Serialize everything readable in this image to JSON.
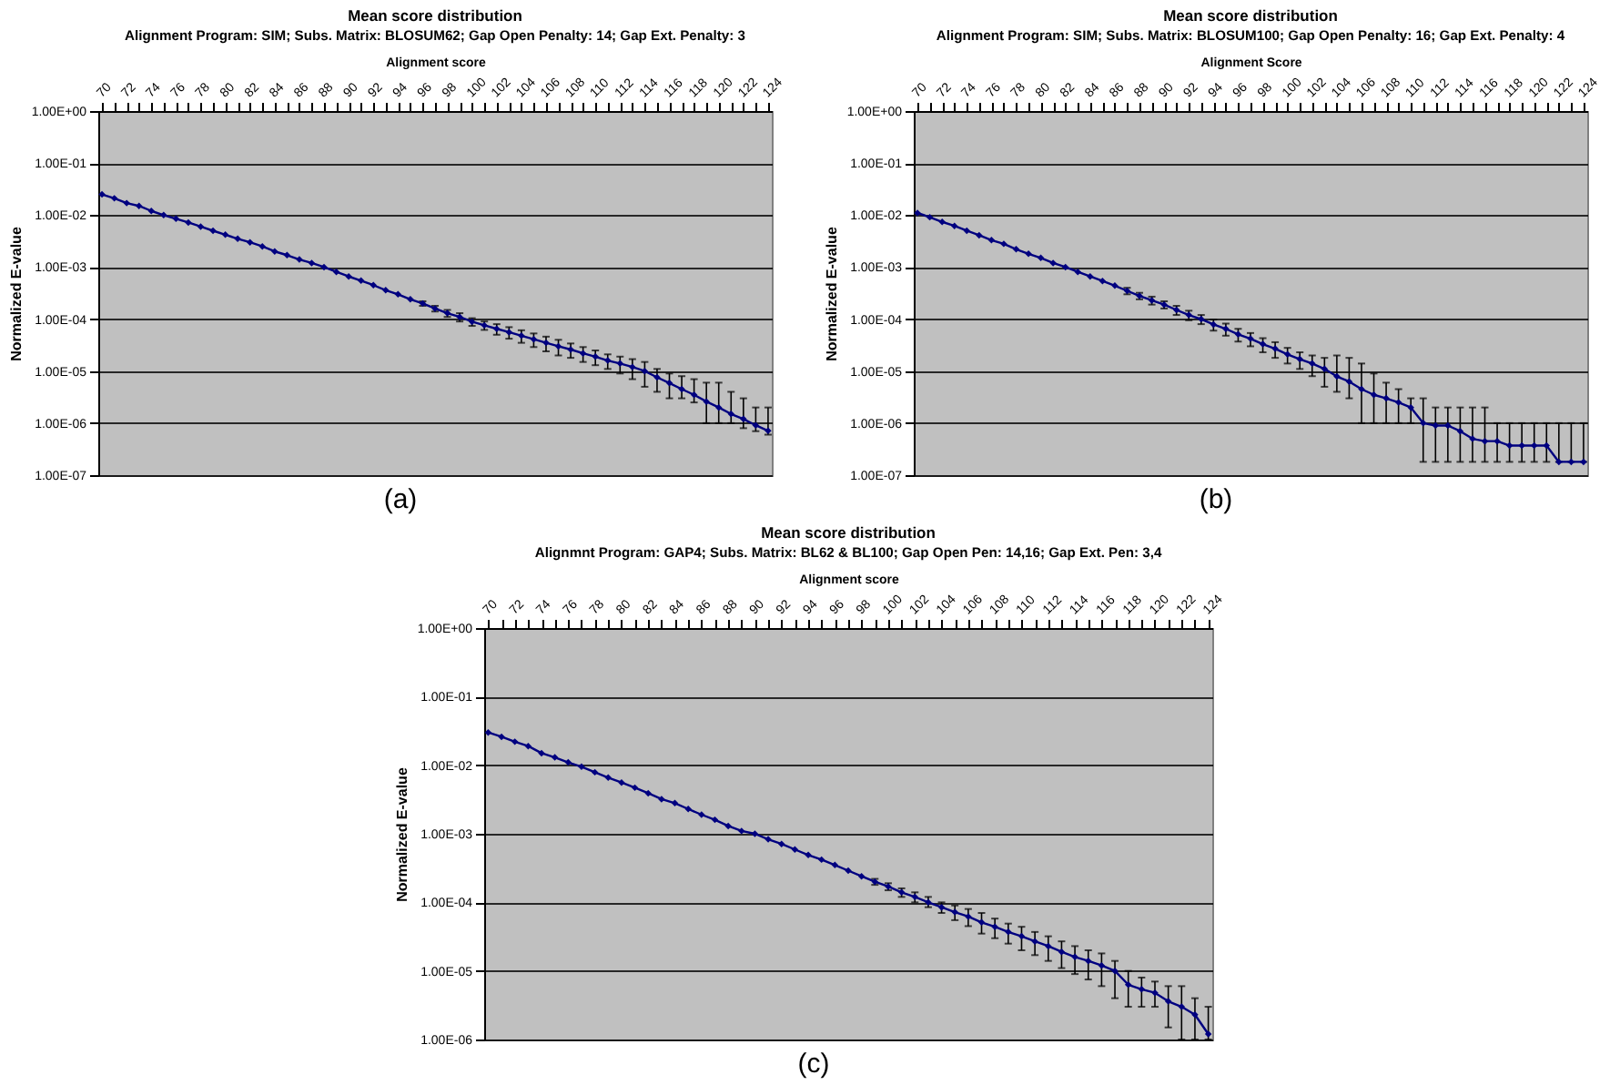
{
  "chart_data": [
    {
      "type": "line",
      "title": "Mean score distribution",
      "subtitle": "Alignment Program: SIM; Subs. Matrix: BLOSUM62; Gap Open Penalty: 14; Gap Ext. Penalty:  3",
      "xlabel": "Alignment score",
      "ylabel": "Normalized E-value",
      "annotations": [
        "(a)"
      ],
      "categories": [
        "70",
        null,
        "72",
        null,
        "74",
        null,
        "76",
        null,
        "78",
        null,
        "80",
        null,
        "82",
        null,
        "84",
        null,
        "86",
        null,
        "88",
        null,
        "90",
        null,
        "92",
        null,
        "94",
        null,
        "96",
        null,
        "98",
        null,
        "100",
        null,
        "102",
        null,
        "104",
        null,
        "106",
        null,
        "108",
        null,
        "110",
        null,
        "112",
        null,
        "114",
        null,
        "116",
        null,
        "118",
        null,
        "120",
        null,
        "122",
        null,
        "124"
      ],
      "series": [
        {
          "color": "#000080",
          "values": [
            0.025,
            0.021,
            0.017,
            0.015,
            0.012,
            0.01,
            0.0085,
            0.0072,
            0.006,
            0.005,
            0.0042,
            0.0035,
            0.003,
            0.0025,
            0.002,
            0.0017,
            0.0014,
            0.0012,
            0.001,
            0.00081,
            0.00066,
            0.00055,
            0.00045,
            0.00036,
            0.0003,
            0.00024,
            0.0002,
            0.00016,
            0.00013,
            0.00011,
            8.9e-05,
            7.6e-05,
            6.5e-05,
            5.6e-05,
            4.8e-05,
            4.1e-05,
            3.5e-05,
            3e-05,
            2.6e-05,
            2.2e-05,
            1.9e-05,
            1.6e-05,
            1.4e-05,
            1.2e-05,
            1e-05,
            7.6e-06,
            5.9e-06,
            4.5e-06,
            3.5e-06,
            2.6e-06,
            2e-06,
            1.5e-06,
            1.2e-06,
            9.1e-07,
            7.1e-07
          ],
          "errors": [
            null,
            null,
            null,
            null,
            null,
            null,
            null,
            null,
            null,
            null,
            null,
            null,
            null,
            null,
            null,
            null,
            null,
            null,
            null,
            null,
            null,
            null,
            null,
            null,
            null,
            null,
            [
              0.00018,
              0.00022
            ],
            [
              0.00014,
              0.00018
            ],
            [
              0.00011,
              0.00015
            ],
            [
              9e-05,
              0.00013
            ],
            [
              7.4e-05,
              0.000104
            ],
            [
              6.2e-05,
              9e-05
            ],
            [
              5e-05,
              8e-05
            ],
            [
              4.2e-05,
              7e-05
            ],
            [
              3.5e-05,
              6.1e-05
            ],
            [
              2.9e-05,
              5.3e-05
            ],
            [
              2.4e-05,
              4.6e-05
            ],
            [
              2e-05,
              4e-05
            ],
            [
              1.8e-05,
              3.4e-05
            ],
            [
              1.5e-05,
              2.9e-05
            ],
            [
              1.3e-05,
              2.5e-05
            ],
            [
              1.1e-05,
              2.1e-05
            ],
            [
              9e-06,
              1.9e-05
            ],
            [
              7e-06,
              1.7e-05
            ],
            [
              5e-06,
              1.5e-05
            ],
            [
              4e-06,
              1.1e-05
            ],
            [
              3e-06,
              9e-06
            ],
            [
              3e-06,
              8e-06
            ],
            [
              2.5e-06,
              7e-06
            ],
            [
              1e-06,
              6e-06
            ],
            [
              1e-06,
              6e-06
            ],
            [
              1e-06,
              4e-06
            ],
            [
              8e-07,
              3e-06
            ],
            [
              7e-07,
              2e-06
            ],
            [
              6e-07,
              2e-06
            ]
          ]
        }
      ],
      "log": "y",
      "ylim": [
        1e-07,
        1
      ],
      "yticks": [
        {
          "value": 1,
          "label": "1.00E+00"
        },
        {
          "value": 0.1,
          "label": "1.00E-01"
        },
        {
          "value": 0.01,
          "label": "1.00E-02"
        },
        {
          "value": 0.001,
          "label": "1.00E-03"
        },
        {
          "value": 0.0001,
          "label": "1.00E-04"
        },
        {
          "value": 1e-05,
          "label": "1.00E-05"
        },
        {
          "value": 1e-06,
          "label": "1.00E-06"
        },
        {
          "value": 1e-07,
          "label": "1.00E-07"
        }
      ],
      "grid": "y",
      "marker": "diamond",
      "line_style": "solid"
    },
    {
      "type": "line",
      "title": "Mean score distribution",
      "subtitle": "Alignment Program: SIM; Subs. Matrix: BLOSUM100; Gap Open Penalty: 16; Gap Ext. Penalty: 4",
      "xlabel": "Alignment Score",
      "ylabel": "Normalized E-value",
      "annotations": [
        "(b)"
      ],
      "categories": [
        "70",
        null,
        "72",
        null,
        "74",
        null,
        "76",
        null,
        "78",
        null,
        "80",
        null,
        "82",
        null,
        "84",
        null,
        "86",
        null,
        "88",
        null,
        "90",
        null,
        "92",
        null,
        "94",
        null,
        "96",
        null,
        "98",
        null,
        "100",
        null,
        "102",
        null,
        "104",
        null,
        "106",
        null,
        "108",
        null,
        "110",
        null,
        "112",
        null,
        "114",
        null,
        "116",
        null,
        "118",
        null,
        "120",
        null,
        "122",
        null,
        "124"
      ],
      "series": [
        {
          "color": "#000080",
          "values": [
            0.011,
            0.0091,
            0.0074,
            0.0062,
            0.005,
            0.0041,
            0.0033,
            0.0028,
            0.0022,
            0.0018,
            0.0015,
            0.0012,
            0.001,
            0.00081,
            0.00066,
            0.00054,
            0.00044,
            0.00035,
            0.00028,
            0.00023,
            0.00019,
            0.00015,
            0.00012,
            0.0001,
            7.9e-05,
            6.5e-05,
            5.1e-05,
            4.2e-05,
            3.3e-05,
            2.7e-05,
            2.1e-05,
            1.7e-05,
            1.4e-05,
            1.1e-05,
            7.9e-06,
            6.3e-06,
            4.5e-06,
            3.5e-06,
            3e-06,
            2.5e-06,
            2e-06,
            1e-06,
            9e-07,
            9e-07,
            7e-07,
            5e-07,
            4.5e-07,
            4.5e-07,
            3.7e-07,
            3.7e-07,
            3.7e-07,
            3.7e-07,
            1.8e-07,
            1.8e-07,
            1.8e-07
          ],
          "errors": [
            null,
            null,
            null,
            null,
            null,
            null,
            null,
            null,
            null,
            null,
            null,
            null,
            null,
            null,
            null,
            null,
            null,
            [
              0.0003,
              0.0004
            ],
            [
              0.00024,
              0.00032
            ],
            [
              0.00019,
              0.00027
            ],
            [
              0.00016,
              0.00022
            ],
            [
              0.00012,
              0.00018
            ],
            [
              9.5e-05,
              0.000145
            ],
            [
              8e-05,
              0.00012
            ],
            [
              6e-05,
              9.8e-05
            ],
            [
              4.8e-05,
              8.2e-05
            ],
            [
              3.7e-05,
              6.5e-05
            ],
            [
              3e-05,
              5.4e-05
            ],
            [
              2.3e-05,
              4.3e-05
            ],
            [
              1.8e-05,
              3.6e-05
            ],
            [
              1.4e-05,
              2.8e-05
            ],
            [
              1.1e-05,
              2.3e-05
            ],
            [
              8e-06,
              2e-05
            ],
            [
              5e-06,
              1.8e-05
            ],
            [
              4e-06,
              2e-05
            ],
            [
              3e-06,
              1.8e-05
            ],
            [
              1e-06,
              1.4e-05
            ],
            [
              1e-06,
              9e-06
            ],
            [
              1e-06,
              6e-06
            ],
            [
              1e-06,
              4.5e-06
            ],
            [
              1e-06,
              3e-06
            ],
            [
              1.8e-07,
              3e-06
            ],
            [
              1.8e-07,
              2e-06
            ],
            [
              1.8e-07,
              2e-06
            ],
            [
              1.8e-07,
              2e-06
            ],
            [
              1.8e-07,
              2e-06
            ],
            [
              1.8e-07,
              2e-06
            ],
            [
              1.8e-07,
              1e-06
            ],
            [
              1.8e-07,
              1e-06
            ],
            [
              1.8e-07,
              1e-06
            ],
            [
              1.8e-07,
              1e-06
            ],
            [
              1.8e-07,
              1e-06
            ],
            [
              1.8e-07,
              1e-06
            ],
            [
              1.8e-07,
              1e-06
            ],
            [
              1.8e-07,
              1e-06
            ]
          ]
        }
      ],
      "log": "y",
      "ylim": [
        1e-07,
        1
      ],
      "yticks": [
        {
          "value": 1,
          "label": "1.00E+00"
        },
        {
          "value": 0.1,
          "label": "1.00E-01"
        },
        {
          "value": 0.01,
          "label": "1.00E-02"
        },
        {
          "value": 0.001,
          "label": "1.00E-03"
        },
        {
          "value": 0.0001,
          "label": "1.00E-04"
        },
        {
          "value": 1e-05,
          "label": "1.00E-05"
        },
        {
          "value": 1e-06,
          "label": "1.00E-06"
        },
        {
          "value": 1e-07,
          "label": "1.00E-07"
        }
      ],
      "grid": "y",
      "marker": "diamond",
      "line_style": "solid"
    },
    {
      "type": "line",
      "title": "Mean score distribution",
      "subtitle": "Alignmnt Program: GAP4; Subs. Matrix: BL62 & BL100; Gap Open Pen: 14,16; Gap Ext. Pen: 3,4",
      "xlabel": "Alignment score",
      "ylabel": "Normalized E-value",
      "annotations": [
        "(c)"
      ],
      "categories": [
        "70",
        null,
        "72",
        null,
        "74",
        null,
        "76",
        null,
        "78",
        null,
        "80",
        null,
        "82",
        null,
        "84",
        null,
        "86",
        null,
        "88",
        null,
        "90",
        null,
        "92",
        null,
        "94",
        null,
        "96",
        null,
        "98",
        null,
        "100",
        null,
        "102",
        null,
        "104",
        null,
        "106",
        null,
        "108",
        null,
        "110",
        null,
        "112",
        null,
        "114",
        null,
        "116",
        null,
        "118",
        null,
        "120",
        null,
        "122",
        null,
        "124"
      ],
      "series": [
        {
          "color": "#000080",
          "values": [
            0.03,
            0.026,
            0.022,
            0.019,
            0.015,
            0.013,
            0.011,
            0.0095,
            0.0079,
            0.0066,
            0.0056,
            0.0047,
            0.0039,
            0.0032,
            0.0028,
            0.0023,
            0.0019,
            0.0016,
            0.0013,
            0.0011,
            0.001,
            0.00083,
            0.00071,
            0.00059,
            0.00049,
            0.00042,
            0.00035,
            0.00029,
            0.00024,
            0.0002,
            0.00017,
            0.00014,
            0.00012,
            0.0001,
            8.5e-05,
            7.2e-05,
            6.2e-05,
            5.1e-05,
            4.4e-05,
            3.7e-05,
            3.2e-05,
            2.7e-05,
            2.3e-05,
            1.9e-05,
            1.6e-05,
            1.4e-05,
            1.2e-05,
            1e-05,
            6.3e-06,
            5.4e-06,
            4.8e-06,
            3.6e-06,
            3e-06,
            2.3e-06,
            1.2e-06
          ],
          "errors": [
            null,
            null,
            null,
            null,
            null,
            null,
            null,
            null,
            null,
            null,
            null,
            null,
            null,
            null,
            null,
            null,
            null,
            null,
            null,
            null,
            null,
            null,
            null,
            null,
            null,
            null,
            null,
            null,
            null,
            [
              0.00018,
              0.00022
            ],
            [
              0.00015,
              0.00019
            ],
            [
              0.00012,
              0.00016
            ],
            [
              0.0001,
              0.00014
            ],
            [
              8.5e-05,
              0.00012
            ],
            [
              7e-05,
              0.0001
            ],
            [
              5.5e-05,
              9e-05
            ],
            [
              4.5e-05,
              8e-05
            ],
            [
              3.5e-05,
              7e-05
            ],
            [
              3e-05,
              5.8e-05
            ],
            [
              2.5e-05,
              4.9e-05
            ],
            [
              2e-05,
              4.4e-05
            ],
            [
              1.7e-05,
              3.7e-05
            ],
            [
              1.4e-05,
              3.2e-05
            ],
            [
              1.1e-05,
              2.7e-05
            ],
            [
              9e-06,
              2.3e-05
            ],
            [
              7.5e-06,
              2e-05
            ],
            [
              6e-06,
              1.8e-05
            ],
            [
              4e-06,
              1.4e-05
            ],
            [
              3e-06,
              1e-05
            ],
            [
              3e-06,
              8e-06
            ],
            [
              3e-06,
              7e-06
            ],
            [
              1.5e-06,
              6e-06
            ],
            [
              1e-06,
              6e-06
            ],
            [
              1e-06,
              4e-06
            ],
            [
              1e-06,
              3e-06
            ]
          ]
        }
      ],
      "log": "y",
      "ylim": [
        1e-06,
        1
      ],
      "yticks": [
        {
          "value": 1,
          "label": "1.00E+00"
        },
        {
          "value": 0.1,
          "label": "1.00E-01"
        },
        {
          "value": 0.01,
          "label": "1.00E-02"
        },
        {
          "value": 0.001,
          "label": "1.00E-03"
        },
        {
          "value": 0.0001,
          "label": "1.00E-04"
        },
        {
          "value": 1e-05,
          "label": "1.00E-05"
        },
        {
          "value": 1e-06,
          "label": "1.00E-06"
        }
      ],
      "grid": "y",
      "marker": "diamond",
      "line_style": "solid"
    }
  ]
}
